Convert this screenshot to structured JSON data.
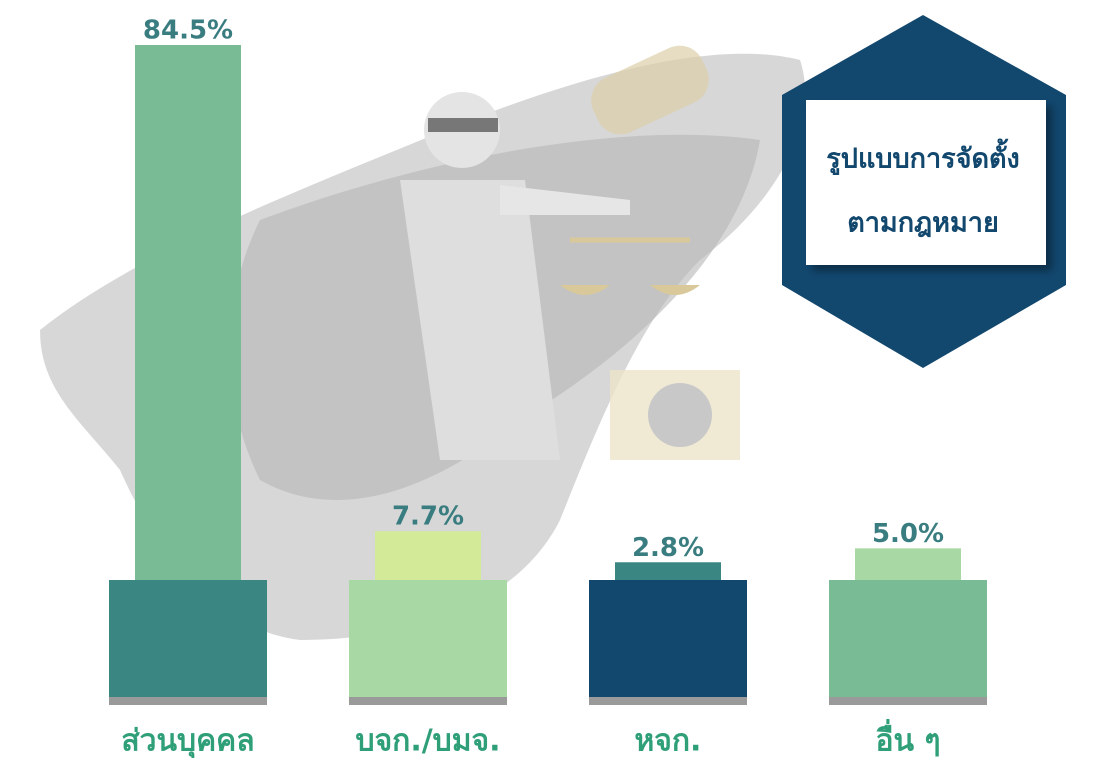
{
  "chart_data": {
    "type": "bar",
    "title": [
      "รูปแบบการจัดตั้ง",
      "ตามกฎหมาย"
    ],
    "categories": [
      "ส่วนบุคคล",
      "บจก./บมจ.",
      "หจก.",
      "อื่น ๆ"
    ],
    "values": [
      84.5,
      7.7,
      2.8,
      5.0
    ],
    "value_labels": [
      "84.5%",
      "7.7%",
      "2.8%",
      "5.0%"
    ],
    "colors": [
      "#78bb95",
      "#d3eb98",
      "#3a8682",
      "#a8d9a4"
    ],
    "base_colors": [
      "#3a8682",
      "#a8d9a4",
      "#12476e",
      "#78bb95"
    ]
  }
}
